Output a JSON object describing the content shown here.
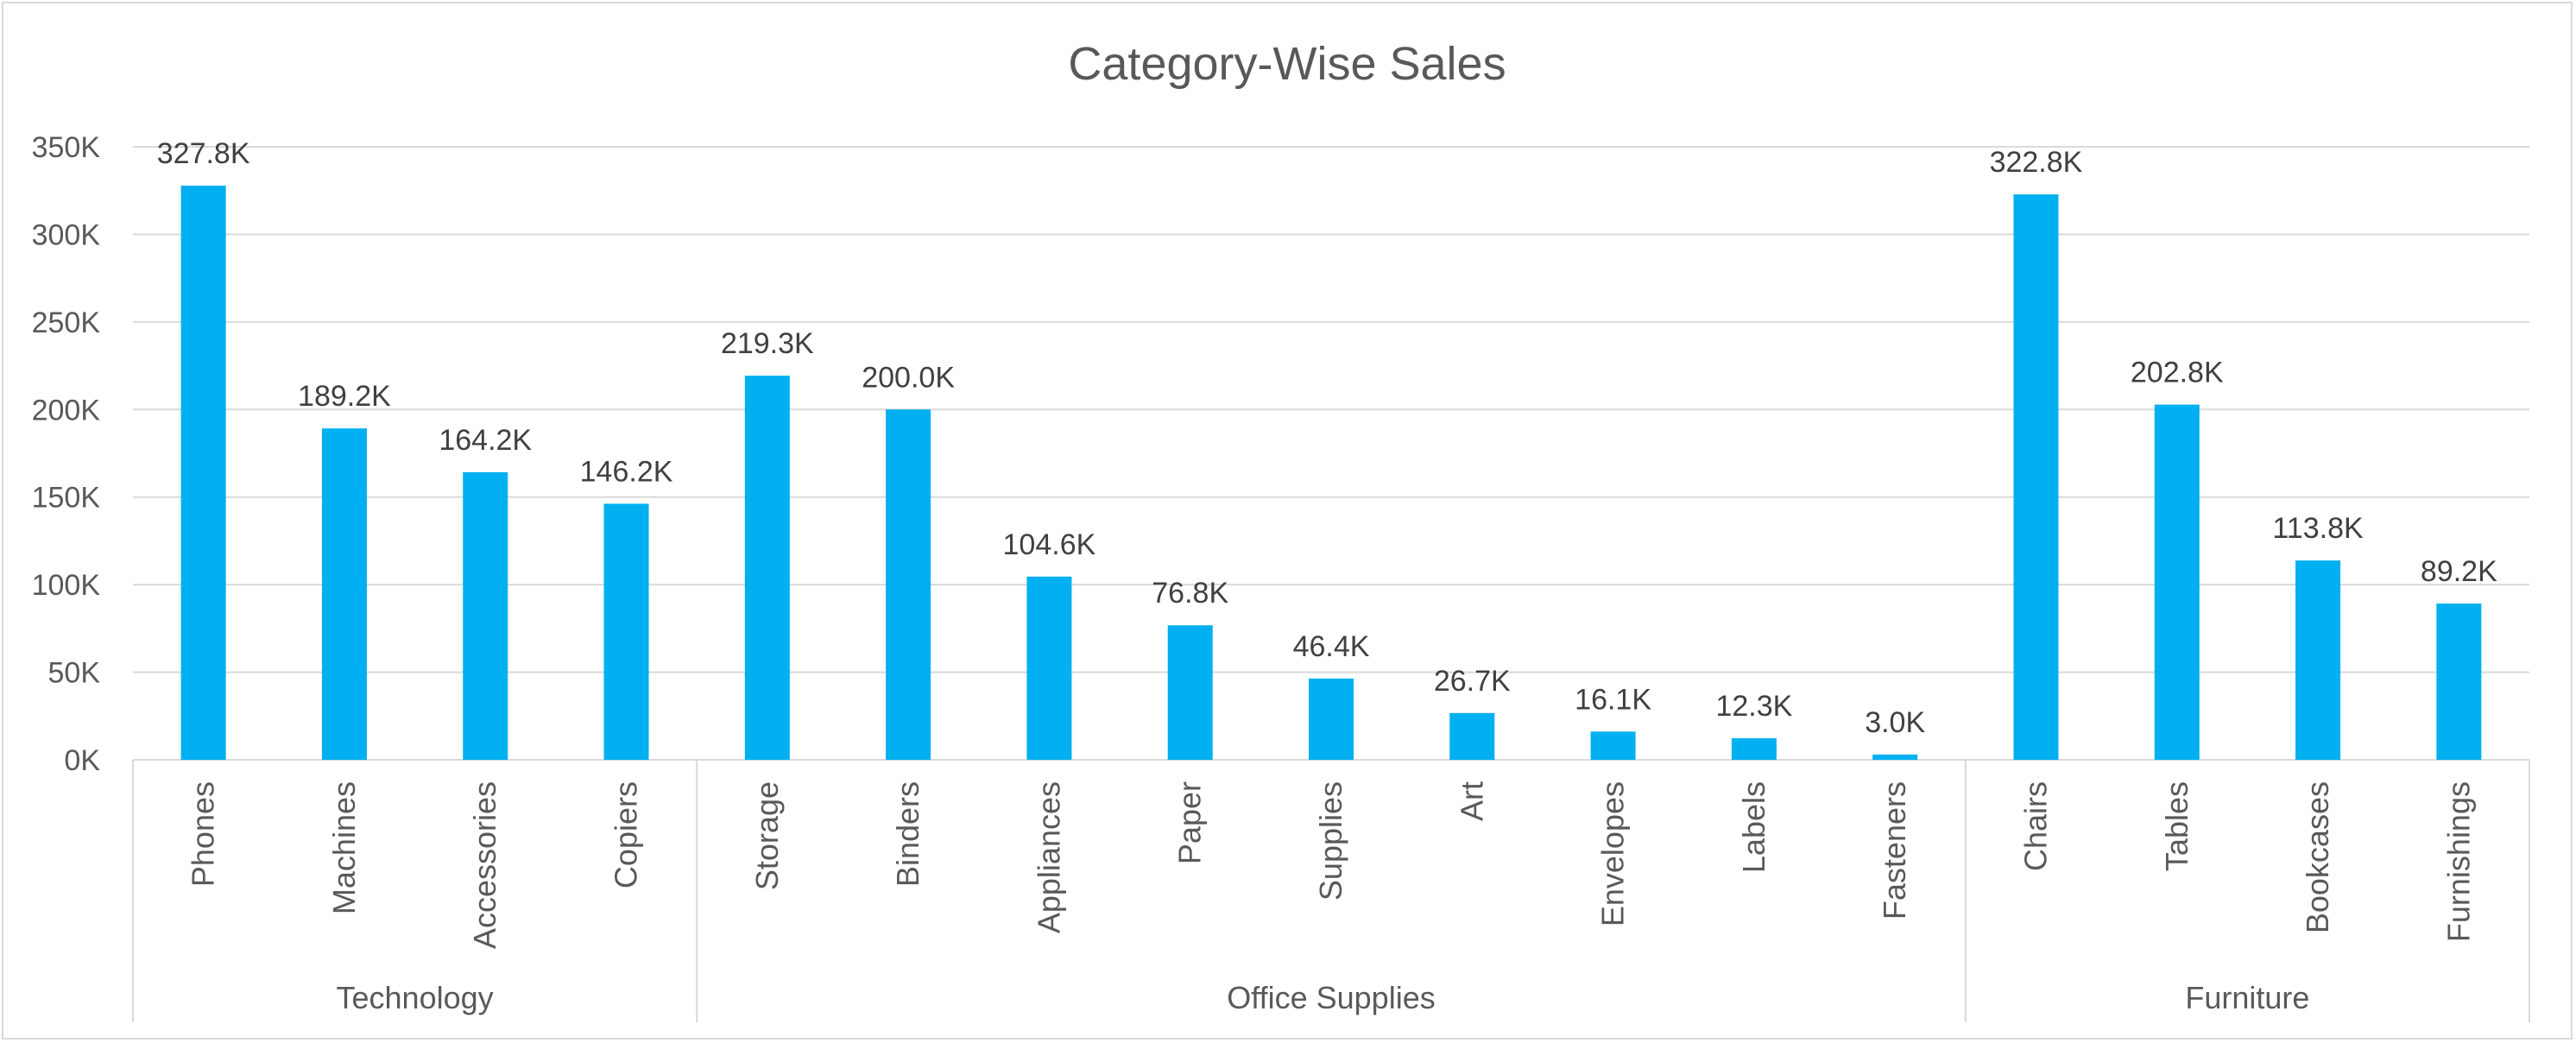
{
  "chart_data": {
    "type": "bar",
    "title": "Category-Wise Sales",
    "xlabel": "",
    "ylabel": "",
    "ylim": [
      0,
      350000
    ],
    "yticks": [
      0,
      50000,
      100000,
      150000,
      200000,
      250000,
      300000,
      350000
    ],
    "ytick_labels": [
      "0K",
      "50K",
      "100K",
      "150K",
      "200K",
      "250K",
      "300K",
      "350K"
    ],
    "grid": true,
    "legend": "none",
    "bar_color": "#00B0F0",
    "groups": [
      {
        "name": "Technology",
        "categories": [
          "Phones",
          "Machines",
          "Accessories",
          "Copiers"
        ],
        "values": [
          327800,
          189200,
          164200,
          146200
        ],
        "labels": [
          "327.8K",
          "189.2K",
          "164.2K",
          "146.2K"
        ]
      },
      {
        "name": "Office Supplies",
        "categories": [
          "Storage",
          "Binders",
          "Appliances",
          "Paper",
          "Supplies",
          "Art",
          "Envelopes",
          "Labels",
          "Fasteners"
        ],
        "values": [
          219300,
          200000,
          104600,
          76800,
          46400,
          26700,
          16100,
          12300,
          3000
        ],
        "labels": [
          "219.3K",
          "200.0K",
          "104.6K",
          "76.8K",
          "46.4K",
          "26.7K",
          "16.1K",
          "12.3K",
          "3.0K"
        ]
      },
      {
        "name": "Furniture",
        "categories": [
          "Chairs",
          "Tables",
          "Bookcases",
          "Furnishings"
        ],
        "values": [
          322800,
          202800,
          113800,
          89200
        ],
        "labels": [
          "322.8K",
          "202.8K",
          "113.8K",
          "89.2K"
        ]
      }
    ]
  }
}
